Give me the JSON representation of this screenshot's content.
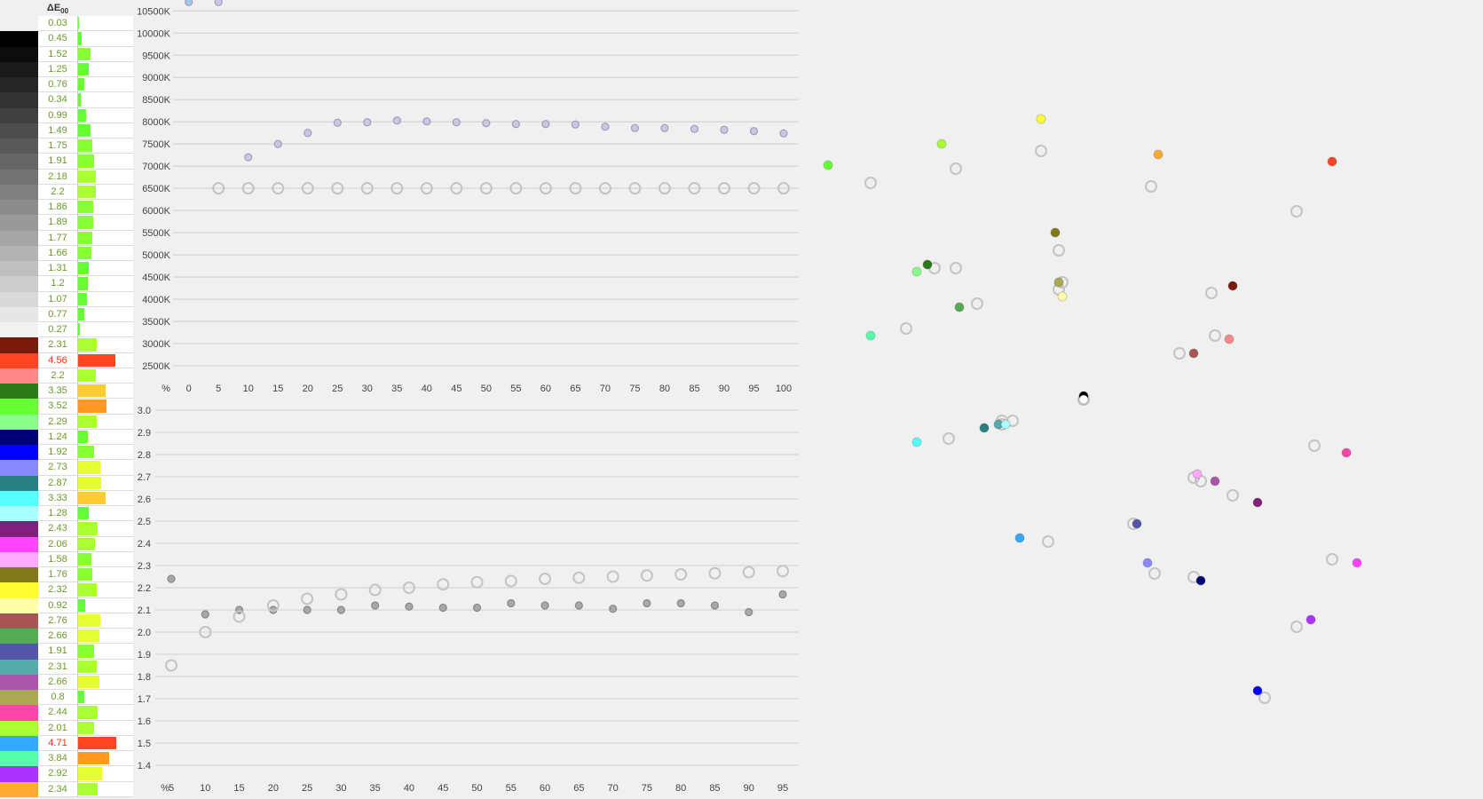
{
  "table": {
    "header": {
      "main": "ΔE",
      "sub": "00"
    },
    "rows": [
      {
        "color": "#f0f0f0",
        "de": 0.03
      },
      {
        "color": "#000000",
        "de": 0.45
      },
      {
        "color": "#0d0d0d",
        "de": 1.52
      },
      {
        "color": "#1a1a1a",
        "de": 1.25
      },
      {
        "color": "#262626",
        "de": 0.76
      },
      {
        "color": "#333333",
        "de": 0.34
      },
      {
        "color": "#404040",
        "de": 0.99
      },
      {
        "color": "#4d4d4d",
        "de": 1.49
      },
      {
        "color": "#595959",
        "de": 1.75
      },
      {
        "color": "#666666",
        "de": 1.91
      },
      {
        "color": "#737373",
        "de": 2.18
      },
      {
        "color": "#808080",
        "de": 2.2
      },
      {
        "color": "#8c8c8c",
        "de": 1.86
      },
      {
        "color": "#999999",
        "de": 1.89
      },
      {
        "color": "#a6a6a6",
        "de": 1.77
      },
      {
        "color": "#b3b3b3",
        "de": 1.66
      },
      {
        "color": "#bfbfbf",
        "de": 1.31
      },
      {
        "color": "#cccccc",
        "de": 1.2
      },
      {
        "color": "#d9d9d9",
        "de": 1.07
      },
      {
        "color": "#e6e6e6",
        "de": 0.77
      },
      {
        "color": "#f2f2f2",
        "de": 0.27
      },
      {
        "color": "#7a1a0a",
        "de": 2.31
      },
      {
        "color": "#ff4422",
        "de": 4.56
      },
      {
        "color": "#ff8888",
        "de": 2.2
      },
      {
        "color": "#2a7a1a",
        "de": 3.35
      },
      {
        "color": "#66ff33",
        "de": 3.52
      },
      {
        "color": "#88ff88",
        "de": 2.29
      },
      {
        "color": "#000077",
        "de": 1.24
      },
      {
        "color": "#0000ff",
        "de": 1.92
      },
      {
        "color": "#8888ff",
        "de": 2.73
      },
      {
        "color": "#2a8080",
        "de": 2.87
      },
      {
        "color": "#55ffff",
        "de": 3.33
      },
      {
        "color": "#aaffff",
        "de": 1.28
      },
      {
        "color": "#80207a",
        "de": 2.43
      },
      {
        "color": "#ff44ff",
        "de": 2.06
      },
      {
        "color": "#ffaaff",
        "de": 1.58
      },
      {
        "color": "#807a1a",
        "de": 1.76
      },
      {
        "color": "#ffff33",
        "de": 2.32
      },
      {
        "color": "#ffffaa",
        "de": 0.92
      },
      {
        "color": "#aa5555",
        "de": 2.76
      },
      {
        "color": "#55aa55",
        "de": 2.66
      },
      {
        "color": "#5555aa",
        "de": 1.91
      },
      {
        "color": "#55aaaa",
        "de": 2.31
      },
      {
        "color": "#aa55aa",
        "de": 2.66
      },
      {
        "color": "#aaaa55",
        "de": 0.8
      },
      {
        "color": "#ff44aa",
        "de": 2.44
      },
      {
        "color": "#aaff33",
        "de": 2.01
      },
      {
        "color": "#33aaff",
        "de": 4.71
      },
      {
        "color": "#55ffaa",
        "de": 3.84
      },
      {
        "color": "#aa33ff",
        "de": 2.92
      },
      {
        "color": "#ffaa33",
        "de": 2.34
      }
    ]
  },
  "colors": {
    "de_good": "#66ff33",
    "de_ok": "#88ff33",
    "de_fair": "#aaff33",
    "de_warn": "#e6ff33",
    "de_high": "#ffcc33",
    "de_higher": "#ff9922",
    "de_bad": "#ff4422",
    "measured_cct": "#c8c8e0",
    "measured_gamma": "#a8a8a8",
    "target": "#c4c4c4",
    "grid": "#d6d6d6"
  },
  "chart_data": [
    {
      "type": "scatter",
      "xlabel": "%",
      "x_ticks": [
        "0",
        "5",
        "10",
        "15",
        "20",
        "25",
        "30",
        "35",
        "40",
        "45",
        "50",
        "55",
        "60",
        "65",
        "70",
        "75",
        "80",
        "85",
        "90",
        "95",
        "100"
      ],
      "y_ticks": [
        "10500K",
        "10000K",
        "9500K",
        "9000K",
        "8500K",
        "8000K",
        "7500K",
        "7000K",
        "6500K",
        "6000K",
        "5500K",
        "5000K",
        "4500K",
        "4000K",
        "3500K",
        "3000K",
        "2500K"
      ],
      "xlim": [
        0,
        100
      ],
      "ylim": [
        2500,
        10500
      ],
      "grid": true,
      "series": [
        {
          "x": [
            0,
            5,
            10,
            15,
            20,
            25,
            30,
            35,
            40,
            45,
            50,
            55,
            60,
            65,
            70,
            75,
            80,
            85,
            90,
            95,
            100
          ],
          "y": [
            10700,
            10700,
            7200,
            7500,
            7750,
            7980,
            7990,
            8030,
            8010,
            7990,
            7970,
            7950,
            7950,
            7940,
            7890,
            7860,
            7860,
            7840,
            7820,
            7790,
            7740
          ],
          "point_colors": [
            "#a8c8e8"
          ]
        },
        {
          "x": [
            5,
            10,
            15,
            20,
            25,
            30,
            35,
            40,
            45,
            50,
            55,
            60,
            65,
            70,
            75,
            80,
            85,
            90,
            95,
            100
          ],
          "y": [
            6500,
            6500,
            6500,
            6500,
            6500,
            6500,
            6500,
            6500,
            6500,
            6500,
            6500,
            6500,
            6500,
            6500,
            6500,
            6500,
            6500,
            6500,
            6500,
            6500
          ],
          "marker": "open"
        }
      ]
    },
    {
      "type": "scatter",
      "xlabel": "%",
      "x_ticks": [
        "5",
        "10",
        "15",
        "20",
        "25",
        "30",
        "35",
        "40",
        "45",
        "50",
        "55",
        "60",
        "65",
        "70",
        "75",
        "80",
        "85",
        "90",
        "95"
      ],
      "y_ticks": [
        "3.0",
        "2.9",
        "2.8",
        "2.7",
        "2.6",
        "2.5",
        "2.4",
        "2.3",
        "2.2",
        "2.1",
        "2.0",
        "1.9",
        "1.8",
        "1.7",
        "1.6",
        "1.5",
        "1.4"
      ],
      "xlim": [
        5,
        95
      ],
      "ylim": [
        1.4,
        3.0
      ],
      "grid": true,
      "series": [
        {
          "x": [
            5,
            10,
            15,
            20,
            25,
            30,
            35,
            40,
            45,
            50,
            55,
            60,
            65,
            70,
            75,
            80,
            85,
            90,
            95
          ],
          "y": [
            2.24,
            2.08,
            2.1,
            2.1,
            2.1,
            2.1,
            2.12,
            2.115,
            2.11,
            2.11,
            2.13,
            2.12,
            2.12,
            2.105,
            2.13,
            2.13,
            2.12,
            2.09,
            2.17
          ]
        },
        {
          "x": [
            5,
            10,
            15,
            20,
            25,
            30,
            35,
            40,
            45,
            50,
            55,
            60,
            65,
            70,
            75,
            80,
            85,
            90,
            95
          ],
          "y": [
            1.85,
            2.0,
            2.07,
            2.12,
            2.15,
            2.17,
            2.19,
            2.2,
            2.215,
            2.225,
            2.23,
            2.24,
            2.245,
            2.25,
            2.255,
            2.26,
            2.265,
            2.27,
            2.275
          ],
          "marker": "open"
        }
      ]
    },
    {
      "type": "scatter",
      "grid": false,
      "points": [
        {
          "color": "#66ff33",
          "m": [
            -72,
            66
          ],
          "t": [
            -60,
            61
          ]
        },
        {
          "color": "#aaff33",
          "m": [
            -40,
            72
          ],
          "t": [
            -36,
            65
          ]
        },
        {
          "color": "#ffff33",
          "m": [
            -12,
            79
          ],
          "t": [
            -12,
            70
          ]
        },
        {
          "color": "#ffaa33",
          "m": [
            21,
            69
          ],
          "t": [
            19,
            60
          ]
        },
        {
          "color": "#ff4422",
          "m": [
            70,
            67
          ],
          "t": [
            60,
            53
          ]
        },
        {
          "color": "#807a1a",
          "m": [
            -8,
            47
          ],
          "t": [
            -7,
            42
          ]
        },
        {
          "color": "#2a7a1a",
          "m": [
            -44,
            38
          ],
          "t": [
            -42,
            37
          ]
        },
        {
          "color": "#88ff88",
          "m": [
            -47,
            36
          ],
          "t": [
            -36,
            37
          ]
        },
        {
          "color": "#aaaa55",
          "m": [
            -7,
            33
          ],
          "t": [
            -6,
            33
          ]
        },
        {
          "color": "#ffffaa",
          "m": [
            -6,
            29
          ],
          "t": [
            -7,
            31
          ]
        },
        {
          "color": "#55aa55",
          "m": [
            -35,
            26
          ],
          "t": [
            -30,
            27
          ]
        },
        {
          "color": "#55ffaa",
          "m": [
            -60,
            18
          ],
          "t": [
            -50,
            20
          ]
        },
        {
          "color": "#7a1a0a",
          "m": [
            42,
            32
          ],
          "t": [
            36,
            30
          ]
        },
        {
          "color": "#ff8888",
          "m": [
            41,
            17
          ],
          "t": [
            37,
            18
          ]
        },
        {
          "color": "#aa5555",
          "m": [
            31,
            13
          ],
          "t": [
            27,
            13
          ]
        },
        {
          "color": "#000000",
          "m": [
            0,
            1
          ],
          "t": [
            0,
            0
          ]
        },
        {
          "color": "#ffffff",
          "m": [
            0,
            0
          ],
          "t": [
            0,
            0
          ]
        },
        {
          "color": "#55ffff",
          "m": [
            -47,
            -12
          ],
          "t": [
            -38,
            -11
          ]
        },
        {
          "color": "#2a8080",
          "m": [
            -28,
            -8
          ],
          "t": [
            -23,
            -7
          ]
        },
        {
          "color": "#55aaaa",
          "m": [
            -24,
            -7
          ],
          "t": [
            -20,
            -6
          ]
        },
        {
          "color": "#aaffff",
          "m": [
            -22,
            -7
          ],
          "t": [
            -23,
            -6
          ]
        },
        {
          "color": "#33aaff",
          "m": [
            -18,
            -39
          ],
          "t": [
            -10,
            -40
          ]
        },
        {
          "color": "#5555aa",
          "m": [
            15,
            -35
          ],
          "t": [
            14,
            -35
          ]
        },
        {
          "color": "#8888ff",
          "m": [
            18,
            -46
          ],
          "t": [
            20,
            -49
          ]
        },
        {
          "color": "#ff44aa",
          "m": [
            74,
            -15
          ],
          "t": [
            65,
            -13
          ]
        },
        {
          "color": "#ffaaff",
          "m": [
            32,
            -21
          ],
          "t": [
            31,
            -22
          ]
        },
        {
          "color": "#aa55aa",
          "m": [
            37,
            -23
          ],
          "t": [
            33,
            -23
          ]
        },
        {
          "color": "#80207a",
          "m": [
            49,
            -29
          ],
          "t": [
            42,
            -27
          ]
        },
        {
          "color": "#000077",
          "m": [
            33,
            -51
          ],
          "t": [
            31,
            -50
          ]
        },
        {
          "color": "#ff44ff",
          "m": [
            77,
            -46
          ],
          "t": [
            70,
            -45
          ]
        },
        {
          "color": "#aa33ff",
          "m": [
            64,
            -62
          ],
          "t": [
            60,
            -64
          ]
        },
        {
          "color": "#0000ff",
          "m": [
            49,
            -82
          ],
          "t": [
            51,
            -84
          ]
        }
      ]
    }
  ]
}
